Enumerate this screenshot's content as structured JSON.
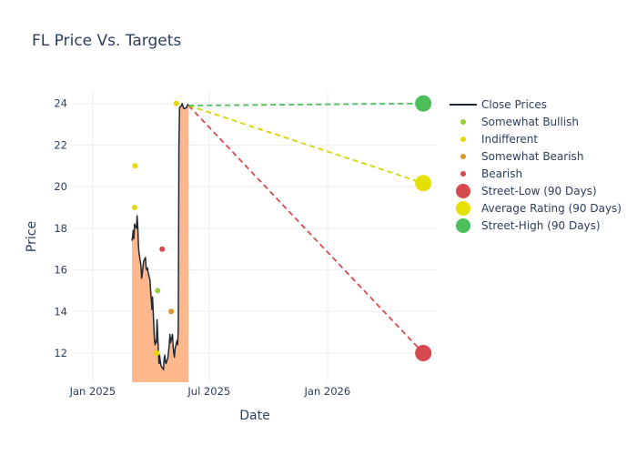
{
  "chart_data": {
    "type": "line",
    "title": "FL Price Vs. Targets",
    "xlabel": "Date",
    "ylabel": "Price",
    "xlim": [
      "2024-12-01",
      "2026-06-20"
    ],
    "ylim": [
      10.6,
      24.6
    ],
    "x_ticks": [
      {
        "date": "2025-01-01",
        "label": "Jan 2025"
      },
      {
        "date": "2025-07-01",
        "label": "Jul 2025"
      },
      {
        "date": "2026-01-01",
        "label": "Jan 2026"
      }
    ],
    "y_ticks": [
      12,
      14,
      16,
      18,
      20,
      22,
      24
    ],
    "grid": true,
    "legend_position": "right",
    "close_prices": {
      "name": "Close Prices",
      "color": "#1f2a38",
      "fill_color": "#ffb78c",
      "points": [
        [
          "2025-03-03",
          17.4
        ],
        [
          "2025-03-04",
          17.6
        ],
        [
          "2025-03-05",
          17.9
        ],
        [
          "2025-03-06",
          17.5
        ],
        [
          "2025-03-07",
          18.2
        ],
        [
          "2025-03-10",
          18.0
        ],
        [
          "2025-03-11",
          18.6
        ],
        [
          "2025-03-12",
          18.1
        ],
        [
          "2025-03-13",
          17.2
        ],
        [
          "2025-03-14",
          16.8
        ],
        [
          "2025-03-17",
          16.2
        ],
        [
          "2025-03-18",
          15.6
        ],
        [
          "2025-03-19",
          15.8
        ],
        [
          "2025-03-20",
          16.1
        ],
        [
          "2025-03-21",
          16.4
        ],
        [
          "2025-03-24",
          16.6
        ],
        [
          "2025-03-25",
          16.1
        ],
        [
          "2025-03-26",
          16.0
        ],
        [
          "2025-03-27",
          16.1
        ],
        [
          "2025-03-28",
          15.9
        ],
        [
          "2025-03-31",
          15.5
        ],
        [
          "2025-04-01",
          15.0
        ],
        [
          "2025-04-02",
          14.6
        ],
        [
          "2025-04-03",
          14.1
        ],
        [
          "2025-04-04",
          14.7
        ],
        [
          "2025-04-07",
          12.6
        ],
        [
          "2025-04-08",
          12.4
        ],
        [
          "2025-04-09",
          12.6
        ],
        [
          "2025-04-10",
          12.5
        ],
        [
          "2025-04-11",
          13.6
        ],
        [
          "2025-04-14",
          11.5
        ],
        [
          "2025-04-15",
          11.9
        ],
        [
          "2025-04-16",
          11.6
        ],
        [
          "2025-04-17",
          11.4
        ],
        [
          "2025-04-21",
          11.2
        ],
        [
          "2025-04-22",
          11.7
        ],
        [
          "2025-04-23",
          11.9
        ],
        [
          "2025-04-24",
          11.6
        ],
        [
          "2025-04-25",
          11.5
        ],
        [
          "2025-04-28",
          11.8
        ],
        [
          "2025-04-29",
          12.1
        ],
        [
          "2025-04-30",
          12.4
        ],
        [
          "2025-05-01",
          12.9
        ],
        [
          "2025-05-02",
          12.5
        ],
        [
          "2025-05-05",
          12.9
        ],
        [
          "2025-05-06",
          12.3
        ],
        [
          "2025-05-07",
          12.0
        ],
        [
          "2025-05-08",
          11.8
        ],
        [
          "2025-05-09",
          12.2
        ],
        [
          "2025-05-12",
          12.6
        ],
        [
          "2025-05-13",
          12.4
        ],
        [
          "2025-05-14",
          13.1
        ],
        [
          "2025-05-15",
          21.9
        ],
        [
          "2025-05-16",
          23.8
        ],
        [
          "2025-05-19",
          23.9
        ],
        [
          "2025-05-20",
          24.0
        ],
        [
          "2025-05-21",
          23.9
        ],
        [
          "2025-05-22",
          23.8
        ],
        [
          "2025-05-23",
          23.75
        ],
        [
          "2025-05-27",
          23.8
        ],
        [
          "2025-05-28",
          23.9
        ],
        [
          "2025-05-29",
          23.95
        ],
        [
          "2025-05-30",
          23.9
        ]
      ]
    },
    "ratings": [
      {
        "name": "Somewhat Bullish",
        "color": "#9acd32",
        "points": [
          [
            "2025-04-12",
            15.0
          ]
        ]
      },
      {
        "name": "Indifferent",
        "color": "#e5d800",
        "points": [
          [
            "2025-03-08",
            21.0
          ],
          [
            "2025-03-07",
            19.0
          ],
          [
            "2025-04-11",
            12.0
          ],
          [
            "2025-05-11",
            24.0
          ]
        ]
      },
      {
        "name": "Somewhat Bearish",
        "color": "#d99a2b",
        "points": [
          [
            "2025-05-03",
            14.0
          ]
        ]
      },
      {
        "name": "Bearish",
        "color": "#d14b4b",
        "points": [
          [
            "2025-04-19",
            17.0
          ]
        ]
      }
    ],
    "targets": [
      {
        "name": "Street-Low (90 Days)",
        "color": "#d64a4f",
        "line_color": "#d64a4f",
        "from": [
          "2025-05-30",
          23.9
        ],
        "to": [
          "2026-05-30",
          12.0
        ]
      },
      {
        "name": "Average Rating (90 Days)",
        "color": "#e5e000",
        "line_color": "#d4d400",
        "from": [
          "2025-05-30",
          23.9
        ],
        "to": [
          "2026-05-30",
          20.17
        ]
      },
      {
        "name": "Street-High (90 Days)",
        "color": "#4cbf5a",
        "line_color": "#4cbf5a",
        "from": [
          "2025-05-30",
          23.9
        ],
        "to": [
          "2026-05-30",
          24.0
        ]
      }
    ]
  }
}
